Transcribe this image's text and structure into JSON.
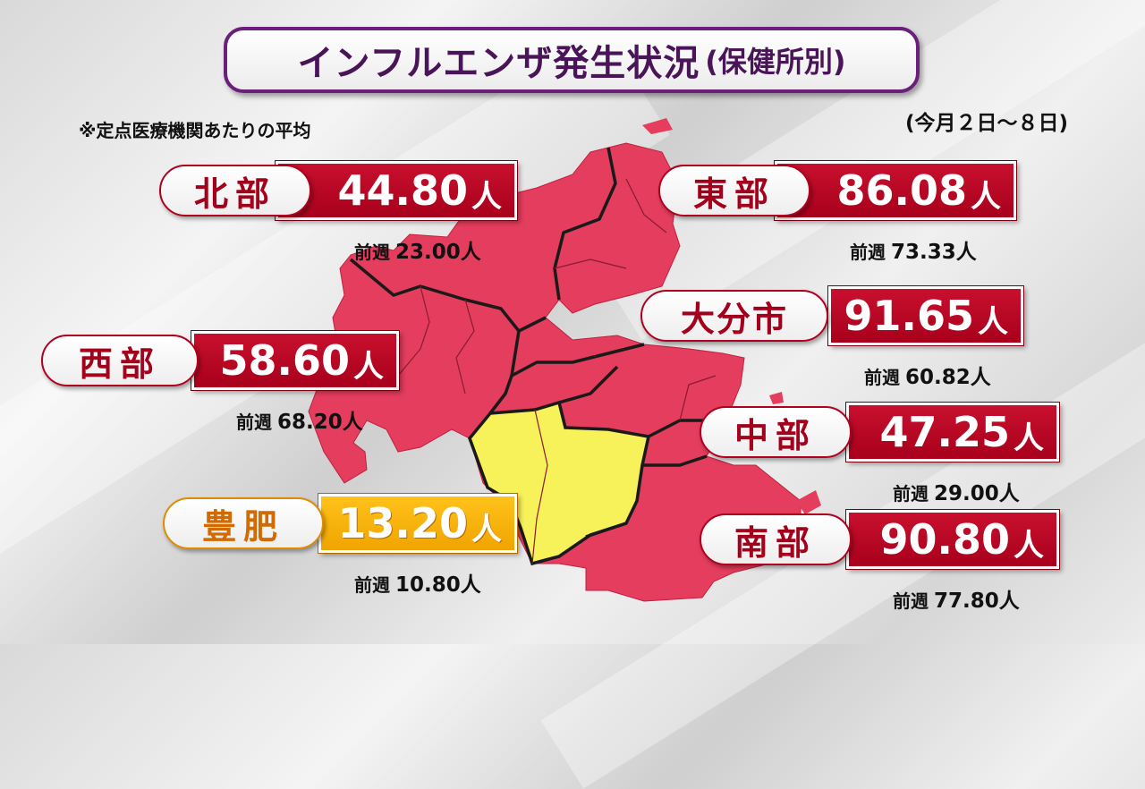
{
  "title": {
    "main": "インフルエンザ発生状況",
    "sub": "(保健所別)"
  },
  "note": "※定点医療機関あたりの平均",
  "period": "(今月２日～８日)",
  "unit": "人",
  "prev_label": "前週",
  "colors": {
    "high": "#e43d5d",
    "low": "#f7f15a",
    "border": "#1a1a1a",
    "badge_red": "#b5001f",
    "badge_yellow": "#f4ad00"
  },
  "districts": {
    "hokubu": {
      "name": "北部",
      "value": "44.80",
      "prev": "23.00人"
    },
    "toubu": {
      "name": "東部",
      "value": "86.08",
      "prev": "73.33人"
    },
    "oita": {
      "name": "大分市",
      "value": "91.65",
      "prev": "60.82人"
    },
    "seibu": {
      "name": "西部",
      "value": "58.60",
      "prev": "68.20人"
    },
    "chubu": {
      "name": "中部",
      "value": "47.25",
      "prev": "29.00人"
    },
    "hohi": {
      "name": "豊肥",
      "value": "13.20",
      "prev": "10.80人"
    },
    "nanbu": {
      "name": "南部",
      "value": "90.80",
      "prev": "77.80人"
    }
  }
}
